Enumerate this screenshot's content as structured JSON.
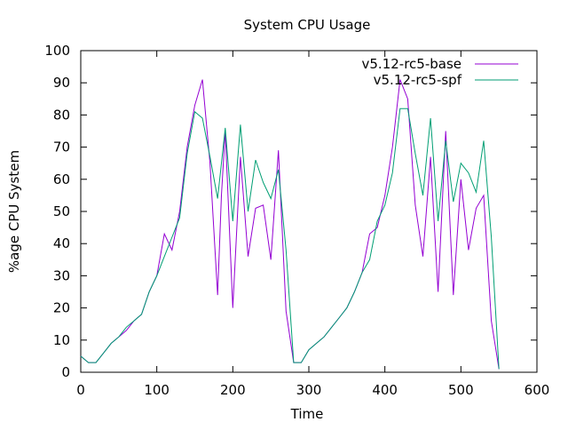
{
  "chart_data": {
    "type": "line",
    "title": "System CPU Usage",
    "xlabel": "Time",
    "ylabel": "%age CPU System",
    "xlim": [
      0,
      600
    ],
    "ylim": [
      0,
      100
    ],
    "xticks": [
      0,
      100,
      200,
      300,
      400,
      500,
      600
    ],
    "yticks": [
      0,
      10,
      20,
      30,
      40,
      50,
      60,
      70,
      80,
      90,
      100
    ],
    "grid": false,
    "legend_position": "top-right",
    "series": [
      {
        "name": "v5.12-rc5-base",
        "color": "#9400d3",
        "points": [
          [
            0,
            5
          ],
          [
            5,
            4
          ],
          [
            10,
            3
          ],
          [
            20,
            3
          ],
          [
            30,
            6
          ],
          [
            40,
            9
          ],
          [
            50,
            11
          ],
          [
            60,
            13
          ],
          [
            70,
            16
          ],
          [
            80,
            18
          ],
          [
            90,
            25
          ],
          [
            100,
            30
          ],
          [
            110,
            43
          ],
          [
            120,
            38
          ],
          [
            130,
            50
          ],
          [
            140,
            70
          ],
          [
            150,
            83
          ],
          [
            160,
            91
          ],
          [
            170,
            65
          ],
          [
            180,
            24
          ],
          [
            185,
            55
          ],
          [
            190,
            75
          ],
          [
            200,
            20
          ],
          [
            210,
            67
          ],
          [
            220,
            36
          ],
          [
            230,
            51
          ],
          [
            240,
            52
          ],
          [
            250,
            35
          ],
          [
            260,
            69
          ],
          [
            270,
            19
          ],
          [
            280,
            3
          ],
          [
            290,
            3
          ],
          [
            300,
            7
          ],
          [
            310,
            9
          ],
          [
            320,
            11
          ],
          [
            330,
            14
          ],
          [
            340,
            17
          ],
          [
            350,
            20
          ],
          [
            360,
            25
          ],
          [
            370,
            31
          ],
          [
            380,
            43
          ],
          [
            390,
            45
          ],
          [
            400,
            55
          ],
          [
            410,
            70
          ],
          [
            420,
            91
          ],
          [
            430,
            85
          ],
          [
            440,
            52
          ],
          [
            450,
            36
          ],
          [
            460,
            67
          ],
          [
            470,
            25
          ],
          [
            480,
            75
          ],
          [
            490,
            24
          ],
          [
            500,
            60
          ],
          [
            510,
            38
          ],
          [
            520,
            51
          ],
          [
            530,
            55
          ],
          [
            540,
            16
          ],
          [
            550,
            1
          ]
        ]
      },
      {
        "name": "v5.12-rc5-spf",
        "color": "#009e73",
        "points": [
          [
            0,
            5
          ],
          [
            10,
            3
          ],
          [
            20,
            3
          ],
          [
            30,
            6
          ],
          [
            40,
            9
          ],
          [
            50,
            11
          ],
          [
            60,
            14
          ],
          [
            70,
            16
          ],
          [
            80,
            18
          ],
          [
            90,
            25
          ],
          [
            100,
            30
          ],
          [
            110,
            36
          ],
          [
            120,
            42
          ],
          [
            130,
            48
          ],
          [
            140,
            68
          ],
          [
            150,
            81
          ],
          [
            160,
            79
          ],
          [
            170,
            67
          ],
          [
            180,
            54
          ],
          [
            190,
            76
          ],
          [
            200,
            47
          ],
          [
            210,
            77
          ],
          [
            220,
            50
          ],
          [
            230,
            66
          ],
          [
            240,
            59
          ],
          [
            250,
            54
          ],
          [
            260,
            63
          ],
          [
            270,
            38
          ],
          [
            280,
            3
          ],
          [
            290,
            3
          ],
          [
            300,
            7
          ],
          [
            310,
            9
          ],
          [
            320,
            11
          ],
          [
            330,
            14
          ],
          [
            340,
            17
          ],
          [
            350,
            20
          ],
          [
            360,
            25
          ],
          [
            370,
            31
          ],
          [
            380,
            35
          ],
          [
            390,
            47
          ],
          [
            400,
            52
          ],
          [
            410,
            62
          ],
          [
            420,
            82
          ],
          [
            430,
            82
          ],
          [
            440,
            68
          ],
          [
            450,
            55
          ],
          [
            460,
            79
          ],
          [
            470,
            47
          ],
          [
            480,
            72
          ],
          [
            490,
            53
          ],
          [
            500,
            65
          ],
          [
            510,
            62
          ],
          [
            520,
            56
          ],
          [
            530,
            72
          ],
          [
            540,
            42
          ],
          [
            550,
            1
          ]
        ]
      }
    ]
  }
}
